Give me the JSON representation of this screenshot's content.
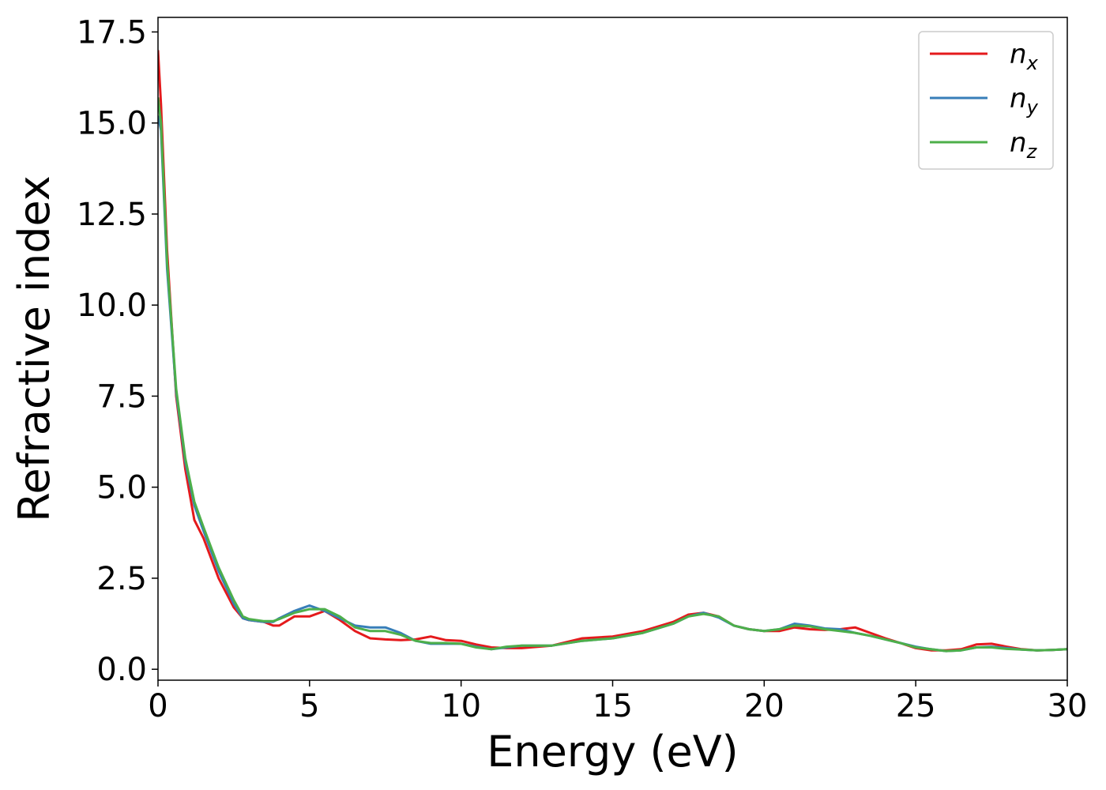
{
  "chart_data": {
    "type": "line",
    "title": "",
    "xlabel": "Energy (eV)",
    "ylabel": "Refractive index",
    "xlim": [
      0,
      30
    ],
    "ylim": [
      -0.3,
      17.9
    ],
    "xticks": [
      0,
      5,
      10,
      15,
      20,
      25,
      30
    ],
    "xtick_labels": [
      "0",
      "5",
      "10",
      "15",
      "20",
      "25",
      "30"
    ],
    "yticks": [
      0,
      2.5,
      5,
      7.5,
      10,
      12.5,
      15,
      17.5
    ],
    "ytick_labels": [
      "0.0",
      "2.5",
      "5.0",
      "7.5",
      "10.0",
      "12.5",
      "15.0",
      "17.5"
    ],
    "grid": false,
    "legend_position": "top-right",
    "series": [
      {
        "name": "n",
        "subscript": "x",
        "color": "#e41a1c",
        "x": [
          0,
          0.1,
          0.3,
          0.6,
          0.9,
          1.2,
          1.5,
          2.0,
          2.5,
          2.8,
          3.0,
          3.5,
          3.8,
          4.0,
          4.5,
          5.0,
          5.5,
          6.0,
          6.5,
          7.0,
          7.5,
          8.0,
          8.5,
          9.0,
          9.5,
          10.0,
          10.5,
          11.0,
          11.5,
          12.0,
          13.0,
          14.0,
          15.0,
          16.0,
          17.0,
          17.5,
          18.0,
          18.5,
          19.0,
          19.5,
          20.0,
          20.5,
          21.0,
          21.5,
          22.0,
          22.5,
          23.0,
          23.5,
          24.0,
          24.5,
          25.0,
          25.5,
          26.0,
          26.5,
          27.0,
          27.5,
          28.0,
          28.5,
          29.0,
          29.5,
          30.0
        ],
        "y": [
          17.0,
          15.5,
          11.5,
          7.5,
          5.5,
          4.1,
          3.6,
          2.5,
          1.7,
          1.4,
          1.35,
          1.3,
          1.2,
          1.2,
          1.45,
          1.45,
          1.6,
          1.35,
          1.05,
          0.85,
          0.82,
          0.8,
          0.82,
          0.9,
          0.8,
          0.78,
          0.68,
          0.6,
          0.58,
          0.58,
          0.65,
          0.85,
          0.9,
          1.05,
          1.3,
          1.5,
          1.55,
          1.45,
          1.2,
          1.1,
          1.05,
          1.05,
          1.15,
          1.1,
          1.08,
          1.1,
          1.15,
          1.0,
          0.85,
          0.72,
          0.58,
          0.52,
          0.52,
          0.55,
          0.68,
          0.7,
          0.62,
          0.55,
          0.52,
          0.53,
          0.55
        ]
      },
      {
        "name": "n",
        "subscript": "y",
        "color": "#377eb8",
        "x": [
          0,
          0.1,
          0.3,
          0.6,
          0.9,
          1.2,
          1.5,
          2.0,
          2.5,
          2.8,
          3.0,
          3.5,
          3.8,
          4.0,
          4.5,
          5.0,
          5.5,
          6.0,
          6.5,
          7.0,
          7.5,
          8.0,
          8.5,
          9.0,
          9.5,
          10.0,
          10.5,
          11.0,
          11.5,
          12.0,
          13.0,
          14.0,
          15.0,
          16.0,
          17.0,
          17.5,
          18.0,
          18.5,
          19.0,
          19.5,
          20.0,
          20.5,
          21.0,
          21.5,
          22.0,
          22.5,
          23.0,
          23.5,
          24.0,
          24.5,
          25.0,
          25.5,
          26.0,
          26.5,
          27.0,
          27.5,
          28.0,
          28.5,
          29.0,
          29.5,
          30.0
        ],
        "y": [
          15.2,
          14.8,
          11.0,
          7.6,
          5.7,
          4.5,
          3.8,
          2.7,
          1.8,
          1.4,
          1.35,
          1.3,
          1.3,
          1.4,
          1.6,
          1.75,
          1.6,
          1.4,
          1.2,
          1.15,
          1.15,
          1.0,
          0.78,
          0.7,
          0.7,
          0.7,
          0.62,
          0.55,
          0.6,
          0.65,
          0.65,
          0.78,
          0.85,
          1.0,
          1.25,
          1.45,
          1.55,
          1.42,
          1.2,
          1.1,
          1.05,
          1.1,
          1.25,
          1.2,
          1.12,
          1.1,
          1.0,
          0.92,
          0.82,
          0.72,
          0.62,
          0.55,
          0.5,
          0.52,
          0.6,
          0.62,
          0.58,
          0.54,
          0.52,
          0.53,
          0.55
        ]
      },
      {
        "name": "n",
        "subscript": "z",
        "color": "#4daf4a",
        "x": [
          0,
          0.1,
          0.3,
          0.6,
          0.9,
          1.2,
          1.5,
          2.0,
          2.5,
          2.8,
          3.0,
          3.5,
          3.8,
          4.0,
          4.5,
          5.0,
          5.5,
          6.0,
          6.5,
          7.0,
          7.5,
          8.0,
          8.5,
          9.0,
          9.5,
          10.0,
          10.5,
          11.0,
          11.5,
          12.0,
          13.0,
          14.0,
          15.0,
          16.0,
          17.0,
          17.5,
          18.0,
          18.5,
          19.0,
          19.5,
          20.0,
          20.5,
          21.0,
          21.5,
          22.0,
          22.5,
          23.0,
          23.5,
          24.0,
          24.5,
          25.0,
          25.5,
          26.0,
          26.5,
          27.0,
          27.5,
          28.0,
          28.5,
          29.0,
          29.5,
          30.0
        ],
        "y": [
          15.7,
          15.0,
          11.2,
          7.7,
          5.8,
          4.6,
          3.9,
          2.8,
          1.9,
          1.45,
          1.38,
          1.32,
          1.32,
          1.38,
          1.55,
          1.65,
          1.65,
          1.45,
          1.15,
          1.05,
          1.05,
          0.95,
          0.78,
          0.72,
          0.72,
          0.7,
          0.6,
          0.55,
          0.62,
          0.65,
          0.65,
          0.78,
          0.85,
          1.0,
          1.25,
          1.45,
          1.52,
          1.45,
          1.2,
          1.1,
          1.05,
          1.1,
          1.2,
          1.18,
          1.1,
          1.05,
          1.0,
          0.92,
          0.82,
          0.72,
          0.6,
          0.55,
          0.5,
          0.52,
          0.6,
          0.6,
          0.56,
          0.54,
          0.52,
          0.53,
          0.55
        ]
      }
    ]
  }
}
